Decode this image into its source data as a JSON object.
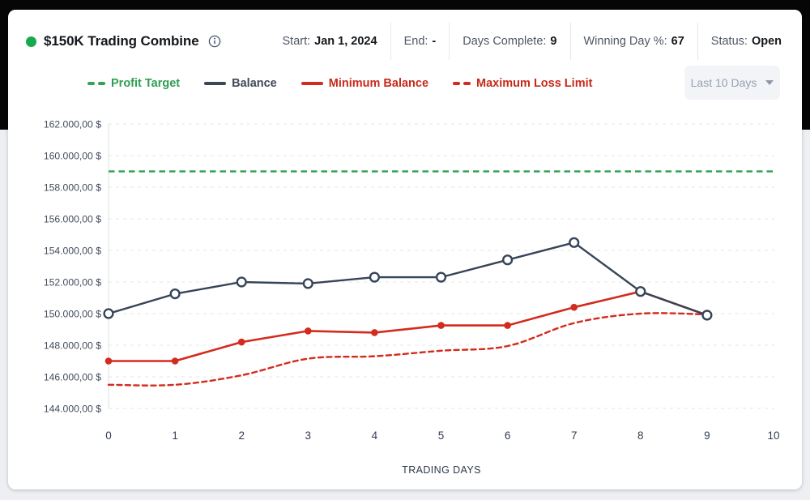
{
  "header": {
    "title": "$150K Trading Combine",
    "status_dot_color": "#17a94e",
    "stats": [
      {
        "label": "Start:",
        "value": "Jan 1, 2024"
      },
      {
        "label": "End:",
        "value": "-"
      },
      {
        "label": "Days Complete:",
        "value": "9"
      },
      {
        "label": "Winning Day %:",
        "value": "67"
      },
      {
        "label": "Status:",
        "value": "Open"
      }
    ]
  },
  "legend": [
    {
      "label": "Profit Target",
      "swatch": "dashed",
      "color": "#35a257",
      "text_color": "#2f9e52"
    },
    {
      "label": "Balance",
      "swatch": "solid",
      "color": "#3b4858",
      "text_color": "#3f4957"
    },
    {
      "label": "Minimum Balance",
      "swatch": "solid",
      "color": "#d32b1d",
      "text_color": "#c62a1b"
    },
    {
      "label": "Maximum Loss Limit",
      "swatch": "dashed",
      "color": "#d32b1d",
      "text_color": "#c62a1b"
    }
  ],
  "range_selector": {
    "label": "Last 10 Days",
    "icon": "chevron-down"
  },
  "chart_data": {
    "type": "line",
    "x": [
      0,
      1,
      2,
      3,
      4,
      5,
      6,
      7,
      8,
      9
    ],
    "x_ticks": [
      "0",
      "1",
      "2",
      "3",
      "4",
      "5",
      "6",
      "7",
      "8",
      "9",
      "10"
    ],
    "xlabel": "TRADING DAYS",
    "xlim": [
      0,
      10
    ],
    "ylim": [
      144000,
      162000
    ],
    "grid": "horizontal-dashed",
    "legend_position": "top",
    "y_ticks": [
      {
        "value": 162000,
        "label": "162.000,00 $"
      },
      {
        "value": 160000,
        "label": "160.000,00 $"
      },
      {
        "value": 158000,
        "label": "158.000,00 $"
      },
      {
        "value": 156000,
        "label": "156.000,00 $"
      },
      {
        "value": 154000,
        "label": "154.000,00 $"
      },
      {
        "value": 152000,
        "label": "152.000,00 $"
      },
      {
        "value": 150000,
        "label": "150.000,00 $"
      },
      {
        "value": 148000,
        "label": "148.000,00 $"
      },
      {
        "value": 146000,
        "label": "146.000,00 $"
      },
      {
        "value": 144000,
        "label": "144.000,00 $"
      }
    ],
    "series": [
      {
        "name": "Profit Target",
        "type": "hline",
        "style": "dashed",
        "color": "#35a257",
        "value": 159000
      },
      {
        "name": "Maximum Loss Limit",
        "type": "line",
        "style": "dashed",
        "smooth": true,
        "color": "#d32b1d",
        "values": [
          145500,
          145500,
          146100,
          147150,
          147300,
          147650,
          147950,
          149400,
          150000,
          149950
        ]
      },
      {
        "name": "Minimum Balance",
        "type": "line",
        "style": "solid",
        "marker": "dot",
        "color": "#d32b1d",
        "values": [
          147000,
          147000,
          148200,
          148900,
          148800,
          149250,
          149250,
          150400,
          151400,
          149900
        ]
      },
      {
        "name": "Balance",
        "type": "line",
        "style": "solid",
        "marker": "open-circle",
        "color": "#364458",
        "values": [
          150000,
          151250,
          152000,
          151900,
          152300,
          152300,
          153400,
          154500,
          151400,
          149900
        ]
      }
    ]
  }
}
